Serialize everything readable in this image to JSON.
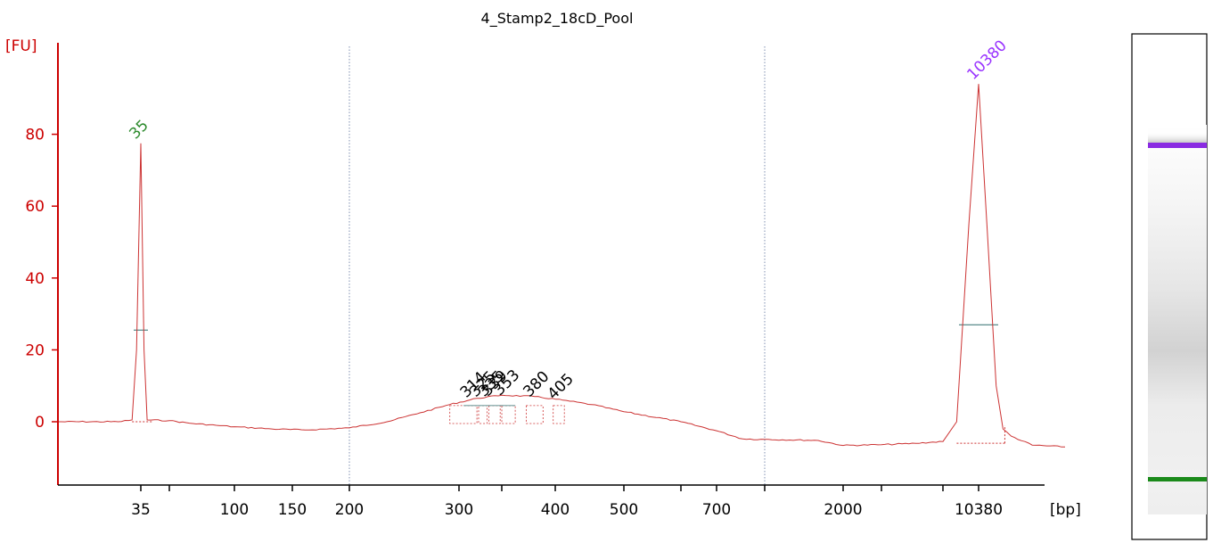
{
  "chart_data": {
    "type": "line",
    "title": "4_Stamp2_18cD_Pool",
    "ylabel": "[FU]",
    "xlabel": "[bp]",
    "ylim": [
      -18,
      105
    ],
    "yticks": [
      0,
      20,
      40,
      60,
      80
    ],
    "x_scale": "ladder (non-linear, bp)",
    "xtick_labels": [
      "35",
      "",
      "100",
      "150",
      "200",
      "300",
      "",
      "400",
      "500",
      "",
      "700",
      "",
      "2000",
      "",
      "",
      "10380"
    ],
    "dotted_gridlines_bp": [
      200,
      1000
    ],
    "grid": false,
    "series": [
      {
        "color": "#cc3333",
        "points": [
          [
            20,
            0.0
          ],
          [
            30,
            0.0
          ],
          [
            33,
            0.5
          ],
          [
            34,
            20.0
          ],
          [
            35,
            77.5
          ],
          [
            36,
            20.0
          ],
          [
            37,
            0.5
          ],
          [
            45,
            0.3
          ],
          [
            60,
            -0.5
          ],
          [
            80,
            -1.0
          ],
          [
            100,
            -1.4
          ],
          [
            130,
            -2.0
          ],
          [
            160,
            -2.3
          ],
          [
            200,
            -1.7
          ],
          [
            230,
            0.0
          ],
          [
            260,
            2.5
          ],
          [
            290,
            4.8
          ],
          [
            320,
            6.5
          ],
          [
            350,
            7.4
          ],
          [
            380,
            7.0
          ],
          [
            410,
            6.0
          ],
          [
            450,
            4.8
          ],
          [
            500,
            2.8
          ],
          [
            600,
            0.0
          ],
          [
            700,
            -2.5
          ],
          [
            850,
            -4.8
          ],
          [
            1000,
            -4.9
          ],
          [
            1500,
            -5.2
          ],
          [
            2000,
            -6.6
          ],
          [
            3000,
            -6.4
          ],
          [
            5000,
            -6.0
          ],
          [
            7500,
            -5.5
          ],
          [
            8500,
            0.0
          ],
          [
            9500,
            55.0
          ],
          [
            10380,
            94.0
          ],
          [
            11200,
            55.0
          ],
          [
            12200,
            10.0
          ],
          [
            13000,
            -2.0
          ],
          [
            14000,
            -4.0
          ],
          [
            17000,
            -6.5
          ],
          [
            23000,
            -7.0
          ]
        ]
      }
    ],
    "peaks": [
      {
        "label": "35",
        "x": 35,
        "y": 77.5,
        "color": "#2e8b2e",
        "half_height": 25.5
      },
      {
        "label": "10380",
        "x": 10380,
        "y": 94.0,
        "color": "#9933ff",
        "half_height": 27.0
      }
    ],
    "region_labels": [
      {
        "label": "314",
        "x": 314,
        "y": 7.0
      },
      {
        "label": "325",
        "x": 325,
        "y": 7.2
      },
      {
        "label": "335",
        "x": 335,
        "y": 7.3
      },
      {
        "label": "339",
        "x": 339,
        "y": 7.4
      },
      {
        "label": "353",
        "x": 353,
        "y": 7.6
      },
      {
        "label": "380",
        "x": 380,
        "y": 7.2
      },
      {
        "label": "405",
        "x": 405,
        "y": 6.5
      }
    ],
    "gel_lane": {
      "bands": [
        {
          "color": "#8a2be2",
          "position": "upper marker"
        },
        {
          "color": "#1a8a1a",
          "position": "lower marker"
        }
      ]
    }
  }
}
